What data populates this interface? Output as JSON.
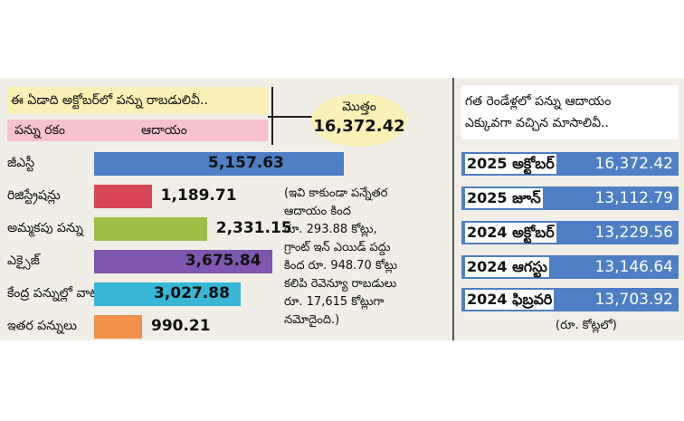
{
  "chart_data": [
    {
      "type": "bar",
      "title": "ఈ ఏడాది అక్టోబర్‌లో పన్ను రాబడులివీ..",
      "column_headers": [
        "పన్ను రకం",
        "ఆదాయం"
      ],
      "categories": [
        "జీఎస్టీ",
        "రిజిస్ట్రేషన్లు",
        "అమ్మకపు పన్ను",
        "ఎక్సైజ్",
        "కేంద్ర పన్నుల్లో వాటా",
        "ఇతర పన్నులు"
      ],
      "values": [
        5157.63,
        1189.71,
        2331.15,
        3675.84,
        3027.88,
        990.21
      ],
      "value_labels": [
        "5,157.63",
        "1,189.71",
        "2,331.15",
        "3,675.84",
        "3,027.88",
        "990.21"
      ],
      "colors": [
        "#4e7fc4",
        "#d9465a",
        "#9cbe45",
        "#7e57b0",
        "#38b6d6",
        "#f2924a"
      ],
      "total_label": "మొత్తం",
      "total_value": "16,372.42",
      "note_lines": [
        "(ఇవి కాకుండా పన్నేతర",
        "ఆదాయం కింద",
        "రూ. 293.88 కోట్లు,",
        "గ్రాంట్ ఇన్ ఎయిడ్ పద్దు",
        "కింద రూ. 948.70 కోట్లు",
        "కలిపి రెవెన్యూ రాబడులు",
        "రూ. 17,615 కోట్లుగా",
        "నమోదైంది.)"
      ]
    },
    {
      "type": "table",
      "title_lines": [
        "గత రెండేళ్లలో పన్ను ఆదాయం",
        "ఎక్కువగా వచ్చిన మాసాలివీ.."
      ],
      "rows": [
        {
          "month": "2025 అక్టోబర్",
          "value": "16,372.42"
        },
        {
          "month": "2025 జూన్",
          "value": "13,112.79"
        },
        {
          "month": "2024 అక్టోబర్",
          "value": "13,229.56"
        },
        {
          "month": "2024 ఆగస్టు",
          "value": "13,146.64"
        },
        {
          "month": "2024 ఫిబ్రవరి",
          "value": "13,703.92"
        }
      ],
      "unit": "(రూ. కోట్లలో)"
    }
  ]
}
